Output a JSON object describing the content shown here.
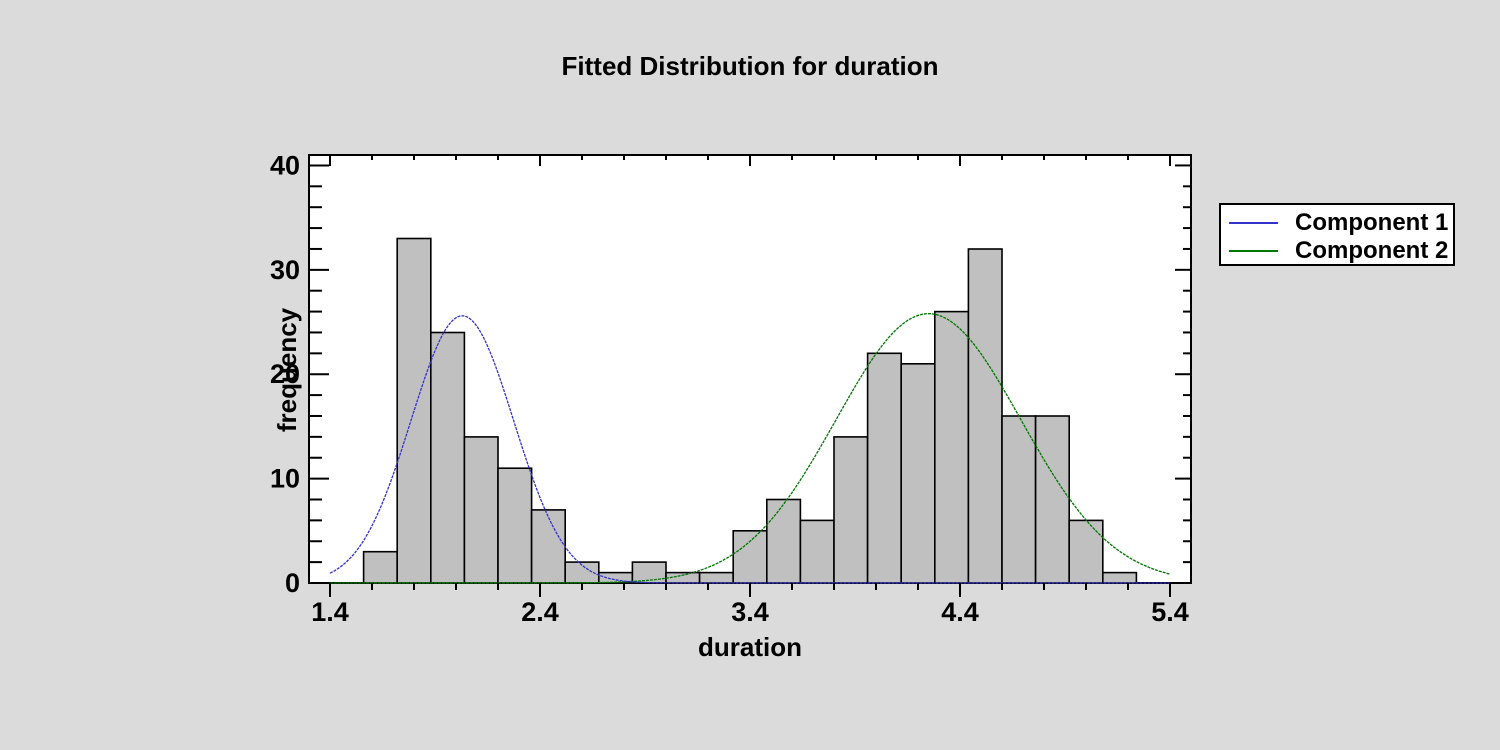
{
  "window": {
    "background_color": "#DBDBDB",
    "plot_background_color": "#FFFFFF"
  },
  "chart": {
    "title": "Fitted Distribution for duration",
    "xlabel": "duration",
    "ylabel": "frequency"
  },
  "legend": {
    "items": [
      {
        "label": "Component 1",
        "color": "#3333CC"
      },
      {
        "label": "Component 2",
        "color": "#007700"
      }
    ]
  },
  "chart_data": {
    "type": "bar",
    "subtype": "histogram-with-fitted-curves",
    "title": "Fitted Distribution for duration",
    "xlabel": "duration",
    "ylabel": "frequency",
    "xlim": [
      1.3,
      5.5
    ],
    "ylim": [
      0,
      41
    ],
    "grid": "off",
    "legend_position": "outside-right",
    "x_ticks": [
      1.4,
      2.4,
      3.4,
      4.4,
      5.4
    ],
    "x_tick_labels": [
      "1.4",
      "2.4",
      "3.4",
      "4.4",
      "5.4"
    ],
    "x_minor_tick_step": 0.2,
    "x_minor_tick_range": [
      1.4,
      5.4
    ],
    "y_ticks": [
      0,
      10,
      20,
      30,
      40
    ],
    "y_tick_labels": [
      "0",
      "10",
      "20",
      "30",
      "40"
    ],
    "y_minor_tick_step": 2,
    "bins": {
      "start": 1.56,
      "width": 0.16,
      "frequencies": [
        3,
        33,
        24,
        14,
        11,
        7,
        2,
        1,
        2,
        1,
        1,
        5,
        8,
        6,
        14,
        22,
        21,
        26,
        32,
        16,
        16,
        6,
        1
      ]
    },
    "bar_fill": "#C0C0C0",
    "bar_stroke": "#000000",
    "frame_stroke": "#000000",
    "curves": [
      {
        "name": "Component 1",
        "mean": 2.03,
        "sd": 0.245,
        "peak": 25.6,
        "color": "#3333CC",
        "x_range": [
          1.4,
          5.4
        ]
      },
      {
        "name": "Component 2",
        "mean": 4.25,
        "sd": 0.44,
        "peak": 25.8,
        "color": "#007700",
        "x_range": [
          1.4,
          5.4
        ]
      }
    ]
  }
}
